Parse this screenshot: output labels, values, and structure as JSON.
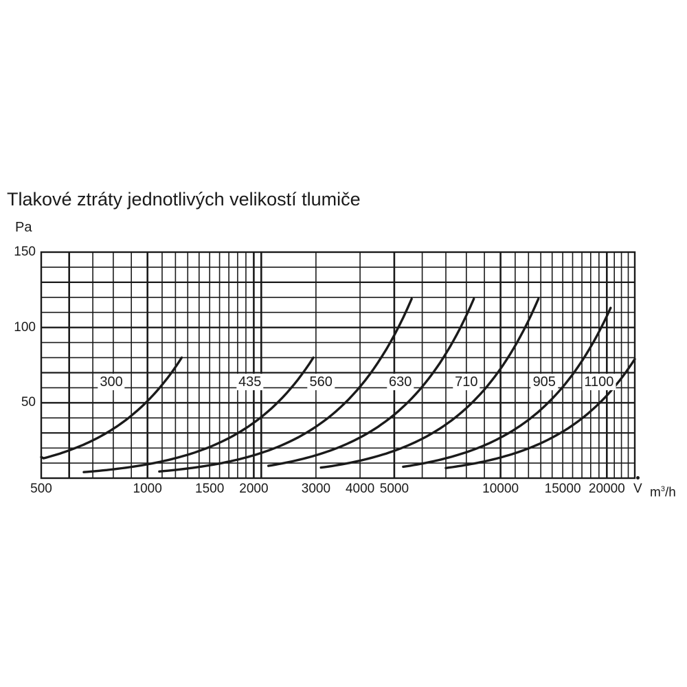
{
  "chart_data": {
    "type": "line",
    "title": "Tlakové ztráty jednotlivých velikostí tlumiče",
    "ylabel": "Pa",
    "xlabel_symbol": "V",
    "xlabel_unit": "m",
    "xlabel_unit_exp": "3",
    "xlabel_unit_tail": "/h",
    "x_scale": "log",
    "xlim": [
      500,
      24000
    ],
    "ylim": [
      0,
      150
    ],
    "y_ticks": [
      {
        "value": 150,
        "label": "150"
      },
      {
        "value": 100,
        "label": "100"
      },
      {
        "value": 50,
        "label": "50"
      }
    ],
    "x_ticks": [
      {
        "value": 500,
        "label": "500"
      },
      {
        "value": 1000,
        "label": "1000"
      },
      {
        "value": 1500,
        "label": "1500"
      },
      {
        "value": 2000,
        "label": "2000"
      },
      {
        "value": 3000,
        "label": "3000"
      },
      {
        "value": 4000,
        "label": "4000"
      },
      {
        "value": 5000,
        "label": "5000"
      },
      {
        "value": 10000,
        "label": "10000"
      },
      {
        "value": 15000,
        "label": "15000"
      },
      {
        "value": 20000,
        "label": "20000"
      }
    ],
    "grid": true,
    "series": [
      {
        "name": "300",
        "label_x": 790,
        "x_start": 500,
        "y_start": 14,
        "x_end": 1250,
        "y_end": 80
      },
      {
        "name": "435",
        "label_x": 1950,
        "x_start": 660,
        "y_start": 0,
        "x_end": 2950,
        "y_end": 80
      },
      {
        "name": "560",
        "label_x": 3100,
        "x_start": 1080,
        "y_start": 3,
        "x_end": 5600,
        "y_end": 119
      },
      {
        "name": "630",
        "label_x": 5200,
        "x_start": 2200,
        "y_start": 4,
        "x_end": 8400,
        "y_end": 119
      },
      {
        "name": "710",
        "label_x": 8000,
        "x_start": 3100,
        "y_start": 7,
        "x_end": 12800,
        "y_end": 119
      },
      {
        "name": "905",
        "label_x": 13300,
        "x_start": 5300,
        "y_start": 5,
        "x_end": 20500,
        "y_end": 113
      },
      {
        "name": "1100",
        "label_x": 19000,
        "x_start": 7000,
        "y_start": 4,
        "x_end": 24000,
        "y_end": 79
      }
    ]
  }
}
